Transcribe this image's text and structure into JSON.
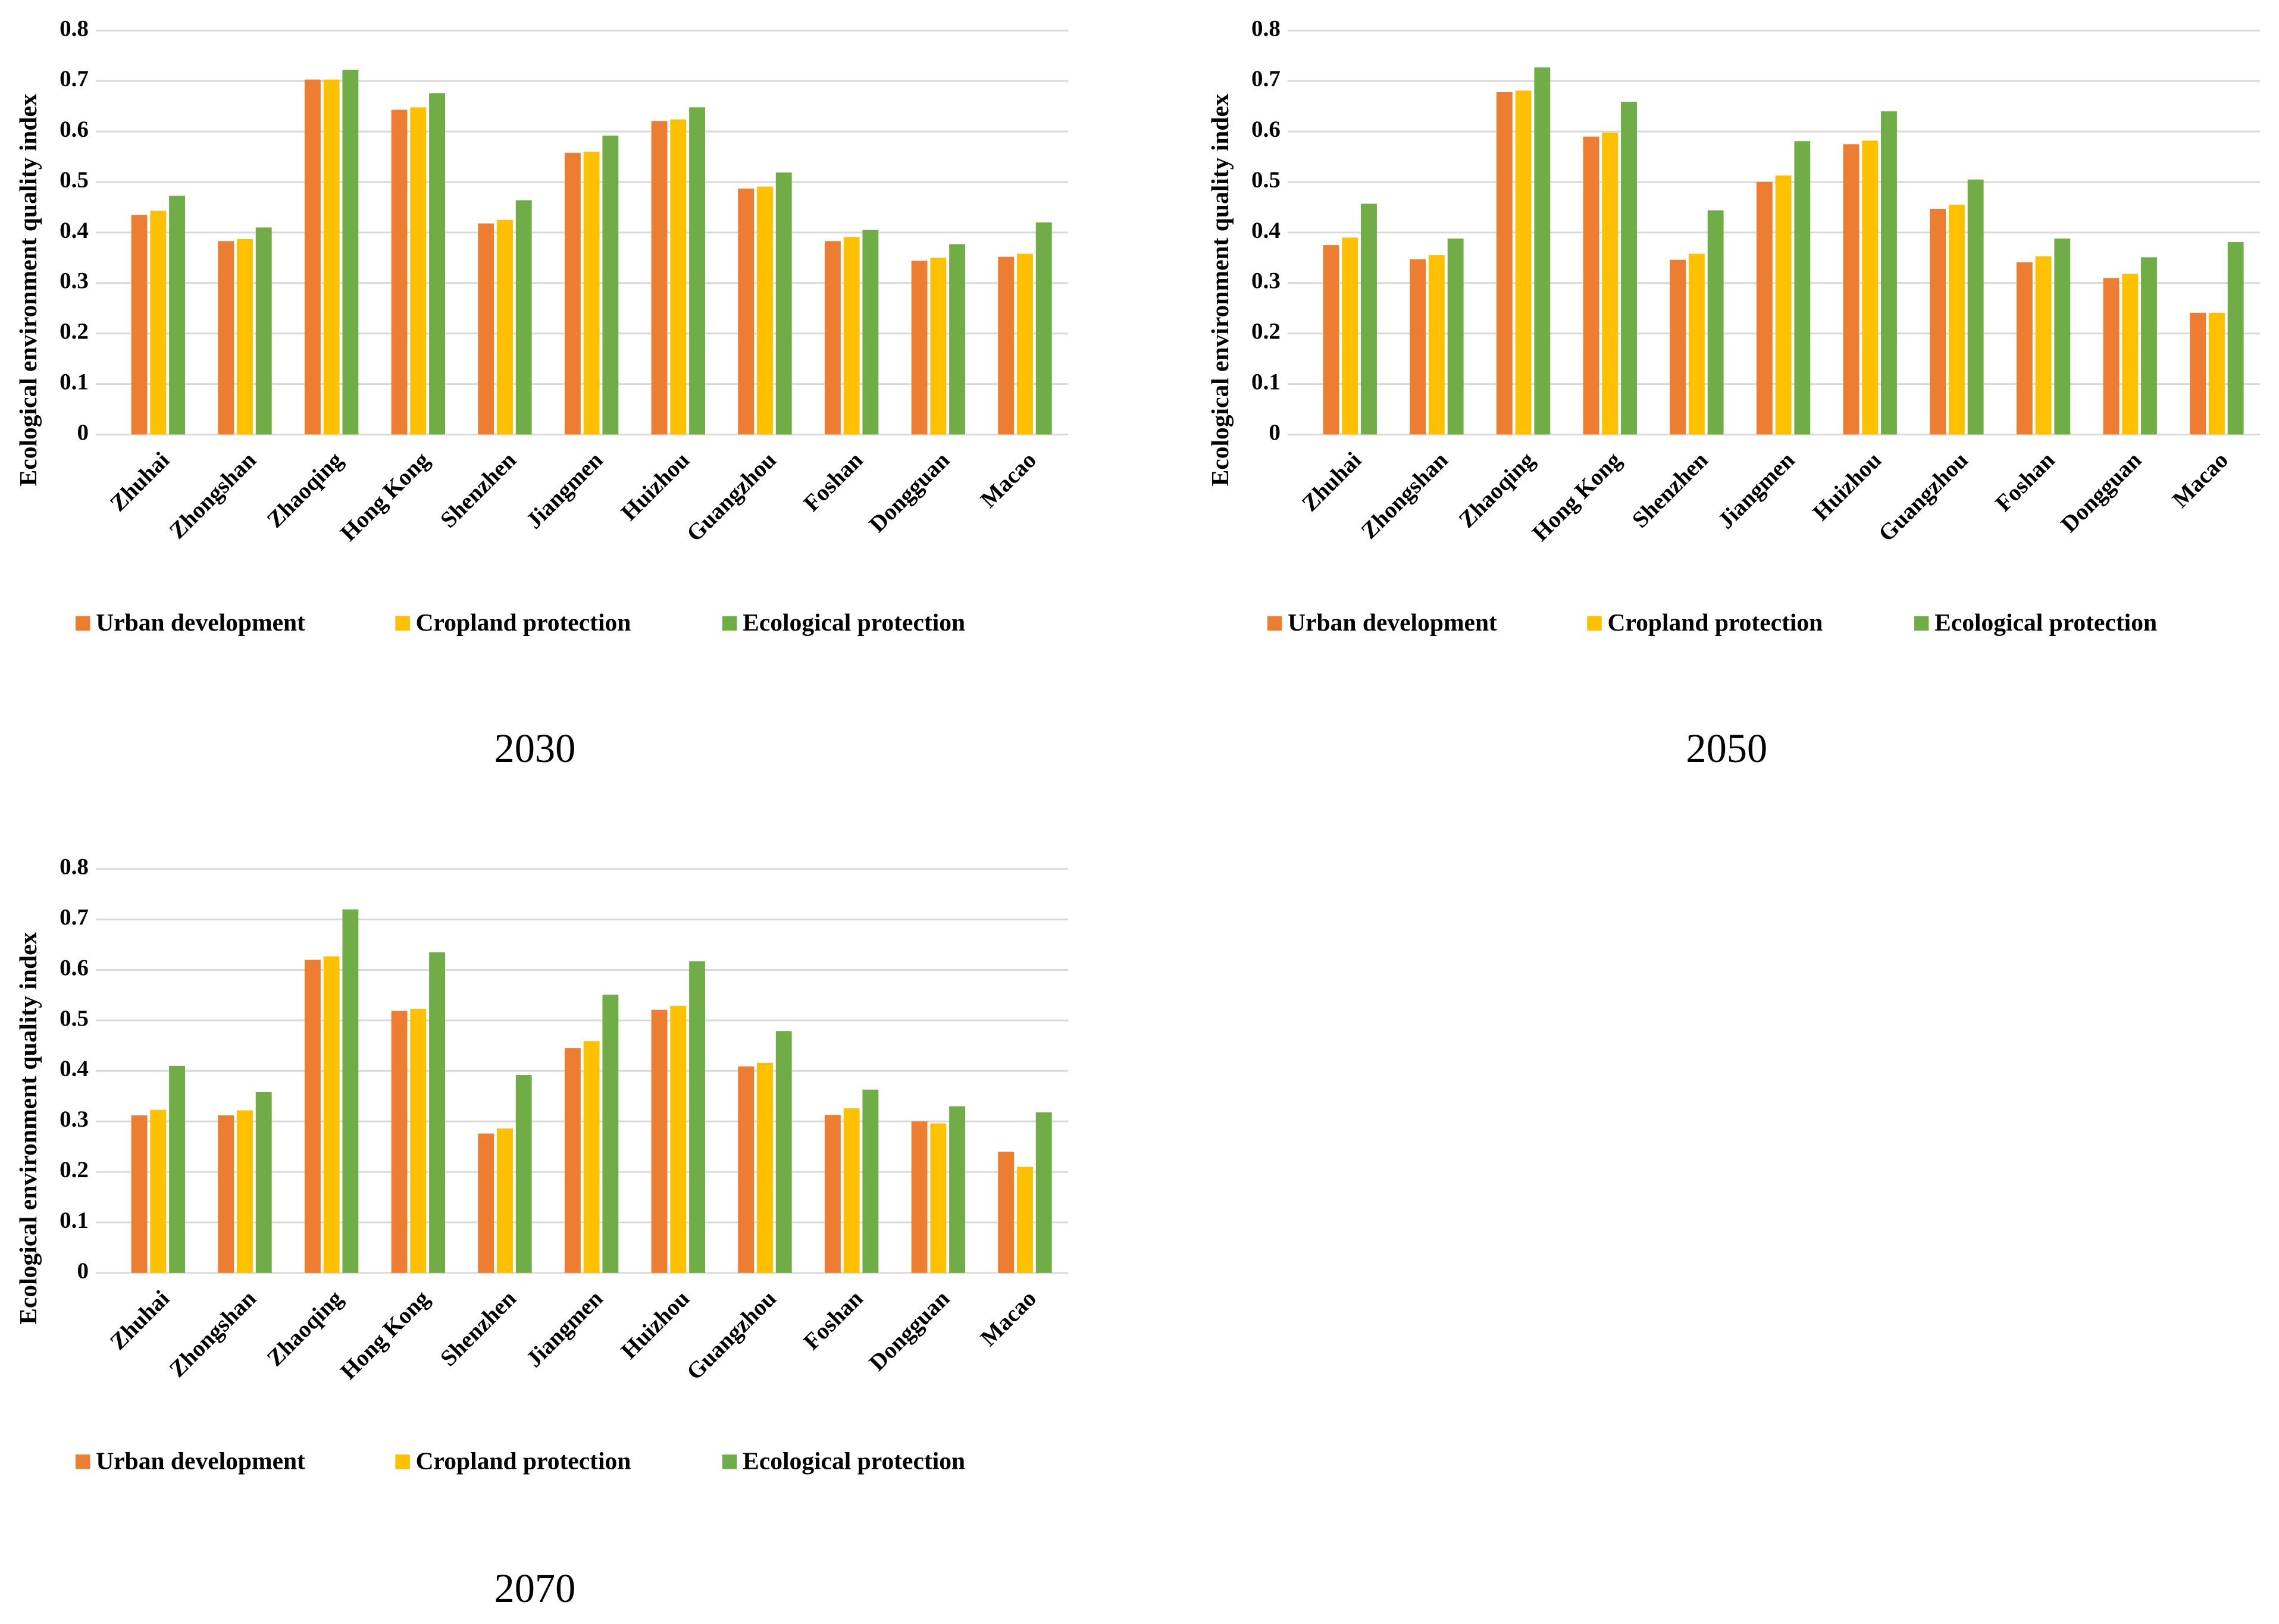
{
  "chart_data": [
    {
      "type": "bar",
      "title": "2030",
      "y_label": "Ecological environment quality index",
      "categories": [
        "Zhuhai",
        "Zhongshan",
        "Zhaoqing",
        "Hong Kong",
        "Shenzhen",
        "Jiangmen",
        "Huizhou",
        "Guangzhou",
        "Foshan",
        "Dongguan",
        "Macao"
      ],
      "series": [
        {
          "name": "Urban development",
          "color": "#ED7D31",
          "values": [
            0.435,
            0.383,
            0.703,
            0.643,
            0.418,
            0.558,
            0.621,
            0.487,
            0.383,
            0.344,
            0.352
          ]
        },
        {
          "name": "Cropland protection",
          "color": "#FFC000",
          "values": [
            0.443,
            0.387,
            0.703,
            0.648,
            0.425,
            0.56,
            0.624,
            0.491,
            0.391,
            0.35,
            0.358
          ]
        },
        {
          "name": "Ecological protection",
          "color": "#70AD47",
          "values": [
            0.473,
            0.41,
            0.722,
            0.676,
            0.464,
            0.592,
            0.648,
            0.519,
            0.405,
            0.377,
            0.42
          ]
        }
      ],
      "ylim": [
        0,
        0.8
      ],
      "yticks": [
        0,
        0.1,
        0.2,
        0.3,
        0.4,
        0.5,
        0.6,
        0.7,
        0.8
      ],
      "grid": true
    },
    {
      "type": "bar",
      "title": "2050",
      "y_label": "Ecological environment quality index",
      "categories": [
        "Zhuhai",
        "Zhongshan",
        "Zhaoqing",
        "Hong Kong",
        "Shenzhen",
        "Jiangmen",
        "Huizhou",
        "Guangzhou",
        "Foshan",
        "Dongguan",
        "Macao"
      ],
      "series": [
        {
          "name": "Urban development",
          "color": "#ED7D31",
          "values": [
            0.375,
            0.347,
            0.678,
            0.59,
            0.346,
            0.5,
            0.575,
            0.447,
            0.341,
            0.31,
            0.241
          ]
        },
        {
          "name": "Cropland protection",
          "color": "#FFC000",
          "values": [
            0.39,
            0.355,
            0.681,
            0.598,
            0.358,
            0.513,
            0.582,
            0.455,
            0.353,
            0.318,
            0.241
          ]
        },
        {
          "name": "Ecological protection",
          "color": "#70AD47",
          "values": [
            0.457,
            0.388,
            0.727,
            0.659,
            0.444,
            0.581,
            0.64,
            0.505,
            0.388,
            0.351,
            0.381
          ]
        }
      ],
      "ylim": [
        0,
        0.8
      ],
      "yticks": [
        0,
        0.1,
        0.2,
        0.3,
        0.4,
        0.5,
        0.6,
        0.7,
        0.8
      ],
      "grid": true
    },
    {
      "type": "bar",
      "title": "2070",
      "y_label": "Ecological environment quality index",
      "categories": [
        "Zhuhai",
        "Zhongshan",
        "Zhaoqing",
        "Hong Kong",
        "Shenzhen",
        "Jiangmen",
        "Huizhou",
        "Guangzhou",
        "Foshan",
        "Dongguan",
        "Macao"
      ],
      "series": [
        {
          "name": "Urban development",
          "color": "#ED7D31",
          "values": [
            0.312,
            0.312,
            0.62,
            0.519,
            0.276,
            0.445,
            0.521,
            0.409,
            0.313,
            0.3,
            0.24
          ]
        },
        {
          "name": "Cropland protection",
          "color": "#FFC000",
          "values": [
            0.323,
            0.322,
            0.627,
            0.523,
            0.286,
            0.459,
            0.529,
            0.416,
            0.326,
            0.296,
            0.21
          ]
        },
        {
          "name": "Ecological protection",
          "color": "#70AD47",
          "values": [
            0.41,
            0.358,
            0.72,
            0.635,
            0.392,
            0.551,
            0.617,
            0.479,
            0.363,
            0.33,
            0.318
          ]
        }
      ],
      "ylim": [
        0,
        0.8
      ],
      "yticks": [
        0,
        0.1,
        0.2,
        0.3,
        0.4,
        0.5,
        0.6,
        0.7,
        0.8
      ],
      "grid": true
    }
  ]
}
